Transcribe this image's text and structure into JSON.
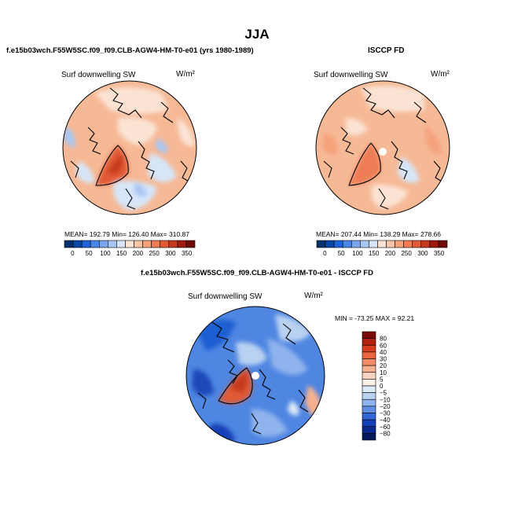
{
  "page": {
    "title": "JJA"
  },
  "panels": {
    "model": {
      "header": "f.e15b03wch.F55W5SC.f09_f09.CLB-AGW4-HM-T0-e01 (yrs 1980-1989)",
      "variable": "Surf downwelling SW",
      "units": "W/m²",
      "stats_text": "MEAN= 192.79   Min= 126.40   Max= 310.87",
      "mean": 192.79,
      "min": 126.4,
      "max": 310.87
    },
    "obs": {
      "header": "ISCCP FD",
      "variable": "Surf downwelling SW",
      "units": "W/m²",
      "stats_text": "MEAN= 207.44   Min= 138.29   Max= 278.66",
      "mean": 207.44,
      "min": 138.29,
      "max": 278.66
    },
    "diff": {
      "header": "f.e15b03wch.F55W5SC.f09_f09.CLB-AGW4-HM-T0-e01 - ISCCP FD",
      "variable": "Surf downwelling SW",
      "units": "W/m²",
      "stats_text": "MIN = -73.25 MAX =  92.21",
      "min": -73.25,
      "max": 92.21
    }
  },
  "colorbar_horizontal": {
    "ticks": [
      "0",
      "50",
      "100",
      "150",
      "200",
      "250",
      "300",
      "350"
    ],
    "colors": [
      "#08306b",
      "#0a45a8",
      "#1f64d6",
      "#4a86e8",
      "#7aa6ee",
      "#a8c6f2",
      "#d6e6f8",
      "#fbe3d4",
      "#f9c4a7",
      "#f5a27b",
      "#ee7d55",
      "#e15a34",
      "#c63a1c",
      "#9e1a0d",
      "#6f0a05"
    ]
  },
  "colorbar_vertical": {
    "labels": [
      "80",
      "60",
      "40",
      "30",
      "20",
      "10",
      "5",
      "0",
      "−5",
      "−10",
      "−20",
      "−30",
      "−40",
      "−60",
      "−80"
    ],
    "colors": [
      "#7a0a06",
      "#b3200f",
      "#d63d1f",
      "#ea6540",
      "#f28c66",
      "#f6b08f",
      "#f9d3bf",
      "#fbeee6",
      "#dce9f7",
      "#b9d2f2",
      "#8fb3ec",
      "#5f8fe3",
      "#3267d6",
      "#1440b8",
      "#0a2a8f",
      "#061a5e"
    ]
  }
}
